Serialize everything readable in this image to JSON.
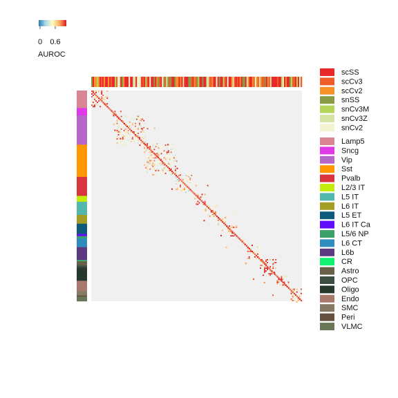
{
  "chart_data": {
    "type": "heatmap",
    "colorbar": {
      "title": "AUROC",
      "tick_labels": [
        "0",
        "0.6"
      ],
      "colors": [
        "#2c7bb6",
        "#abd9e9",
        "#ffffbf",
        "#fdae61",
        "#d7191c"
      ]
    },
    "background_color": "#f0f0f0",
    "dataset_legend": [
      {
        "label": "scSS",
        "color": "#e8282b"
      },
      {
        "label": "scCv3",
        "color": "#f05d2b"
      },
      {
        "label": "scCv2",
        "color": "#f7922b"
      },
      {
        "label": "snSS",
        "color": "#889c45"
      },
      {
        "label": "snCv3M",
        "color": "#b5d45a"
      },
      {
        "label": "snCv3Z",
        "color": "#d6e3a5"
      },
      {
        "label": "snCv2",
        "color": "#f3f4cf"
      }
    ],
    "class_legend": [
      {
        "label": "Lamp5",
        "color": "#d98593"
      },
      {
        "label": "Sncg",
        "color": "#df39e8"
      },
      {
        "label": "Vip",
        "color": "#b767c9"
      },
      {
        "label": "Sst",
        "color": "#fd9702"
      },
      {
        "label": "Pvalb",
        "color": "#d9353e"
      },
      {
        "label": "L2/3 IT",
        "color": "#c3ec0c"
      },
      {
        "label": "L5 IT",
        "color": "#52b8ad"
      },
      {
        "label": "L6 IT",
        "color": "#a39d25"
      },
      {
        "label": "L5 ET",
        "color": "#0e5a7a"
      },
      {
        "label": "L6 IT Ca",
        "color": "#5f0cfa"
      },
      {
        "label": "L5/6 NP",
        "color": "#3ea06a"
      },
      {
        "label": "L6 CT",
        "color": "#2e8cbe"
      },
      {
        "label": "L6b",
        "color": "#5b3a82"
      },
      {
        "label": "CR",
        "color": "#10f071"
      },
      {
        "label": "Astro",
        "color": "#676049"
      },
      {
        "label": "OPC",
        "color": "#3c4d41"
      },
      {
        "label": "Oligo",
        "color": "#27382d"
      },
      {
        "label": "Endo",
        "color": "#a6796c"
      },
      {
        "label": "SMC",
        "color": "#877a64"
      },
      {
        "label": "Peri",
        "color": "#66503f"
      },
      {
        "label": "VLMC",
        "color": "#6a7658"
      }
    ],
    "row_class_blocks": [
      {
        "class": "Lamp5",
        "size": 24
      },
      {
        "class": "Sncg",
        "size": 10
      },
      {
        "class": "Vip",
        "size": 40
      },
      {
        "class": "Sst",
        "size": 44
      },
      {
        "class": "Pvalb",
        "size": 26
      },
      {
        "class": "L2/3 IT",
        "size": 8
      },
      {
        "class": "L5 IT",
        "size": 18
      },
      {
        "class": "L6 IT",
        "size": 12
      },
      {
        "class": "L5 ET",
        "size": 14
      },
      {
        "class": "L6 IT Ca",
        "size": 3
      },
      {
        "class": "L5/6 NP",
        "size": 3
      },
      {
        "class": "L6 CT",
        "size": 12
      },
      {
        "class": "L6b",
        "size": 18
      },
      {
        "class": "CR",
        "size": 1
      },
      {
        "class": "Astro",
        "size": 6
      },
      {
        "class": "OPC",
        "size": 3
      },
      {
        "class": "Oligo",
        "size": 18
      },
      {
        "class": "Endo",
        "size": 14
      },
      {
        "class": "SMC",
        "size": 6
      },
      {
        "class": "Peri",
        "size": 2
      },
      {
        "class": "VLMC",
        "size": 6
      }
    ],
    "diagonal_blocks": [
      {
        "start": 0.0,
        "end": 0.08,
        "value": 0.6
      },
      {
        "start": 0.09,
        "end": 0.12,
        "value": 0.5
      },
      {
        "start": 0.12,
        "end": 0.26,
        "value": 0.45
      },
      {
        "start": 0.25,
        "end": 0.4,
        "value": 0.45
      },
      {
        "start": 0.4,
        "end": 0.49,
        "value": 0.4
      },
      {
        "start": 0.49,
        "end": 0.54,
        "value": 0.65
      },
      {
        "start": 0.54,
        "end": 0.6,
        "value": 0.5
      },
      {
        "start": 0.6,
        "end": 0.64,
        "value": 0.45
      },
      {
        "start": 0.64,
        "end": 0.7,
        "value": 0.55
      },
      {
        "start": 0.74,
        "end": 0.8,
        "value": 0.55
      },
      {
        "start": 0.8,
        "end": 0.88,
        "value": 0.7
      },
      {
        "start": 0.88,
        "end": 0.94,
        "value": 0.5
      },
      {
        "start": 0.94,
        "end": 1.0,
        "value": 0.55
      }
    ]
  }
}
